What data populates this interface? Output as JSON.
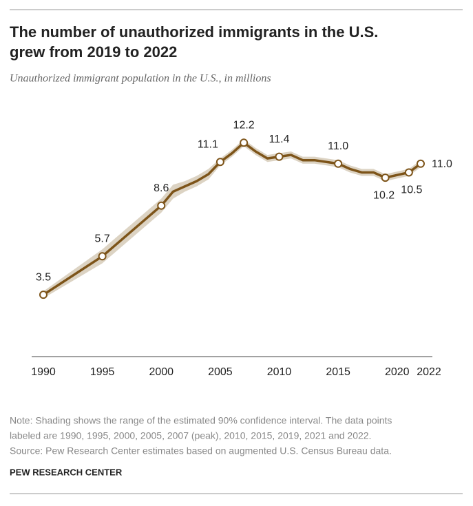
{
  "chart_data": {
    "type": "line",
    "title": [
      "The number of unauthorized immigrants in the U.S.",
      "grew from 2019 to 2022"
    ],
    "subtitle": "Unauthorized immigrant population in the U.S., in millions",
    "x": [
      1990,
      1995,
      2000,
      2001,
      2002,
      2003,
      2004,
      2005,
      2006,
      2007,
      2008,
      2009,
      2010,
      2011,
      2012,
      2013,
      2014,
      2015,
      2016,
      2017,
      2018,
      2019,
      2021,
      2022
    ],
    "values": [
      3.5,
      5.7,
      8.6,
      9.4,
      9.7,
      10.0,
      10.4,
      11.1,
      11.6,
      12.2,
      11.7,
      11.3,
      11.4,
      11.5,
      11.2,
      11.2,
      11.1,
      11.0,
      10.7,
      10.5,
      10.5,
      10.2,
      10.5,
      11.0
    ],
    "value_labels": [
      "3.5",
      "5.7",
      "8.6",
      null,
      null,
      null,
      null,
      "11.1",
      null,
      "12.2",
      null,
      null,
      "11.4",
      null,
      null,
      null,
      null,
      "11.0",
      null,
      null,
      null,
      "10.2",
      "10.5",
      "11.0"
    ],
    "lower": [
      3.3,
      5.3,
      8.2,
      9.0,
      9.4,
      9.7,
      10.1,
      10.9,
      11.4,
      12.0,
      11.5,
      11.1,
      11.2,
      11.3,
      11.0,
      11.0,
      10.9,
      10.8,
      10.5,
      10.3,
      10.3,
      10.0,
      10.3,
      10.8
    ],
    "upper": [
      3.7,
      6.1,
      9.0,
      9.8,
      10.0,
      10.3,
      10.7,
      11.3,
      11.8,
      12.4,
      11.9,
      11.5,
      11.6,
      11.7,
      11.4,
      11.4,
      11.3,
      11.2,
      10.9,
      10.7,
      10.7,
      10.4,
      10.7,
      11.2
    ],
    "color": "#7d5419",
    "band_color": "#dcd3c3",
    "xlim": [
      1990,
      2022
    ],
    "ylim": [
      0,
      13
    ],
    "xticks": [
      1990,
      1995,
      2000,
      2005,
      2010,
      2015,
      2020,
      2022
    ],
    "note": [
      "Note: Shading shows the range of the estimated 90% confidence interval. The data points",
      "labeled are 1990, 1995, 2000, 2005, 2007 (peak), 2010, 2015, 2019, 2021 and 2022."
    ],
    "source": "Source: Pew Research Center estimates based on augmented U.S. Census Bureau data.",
    "credit": "PEW RESEARCH CENTER"
  }
}
